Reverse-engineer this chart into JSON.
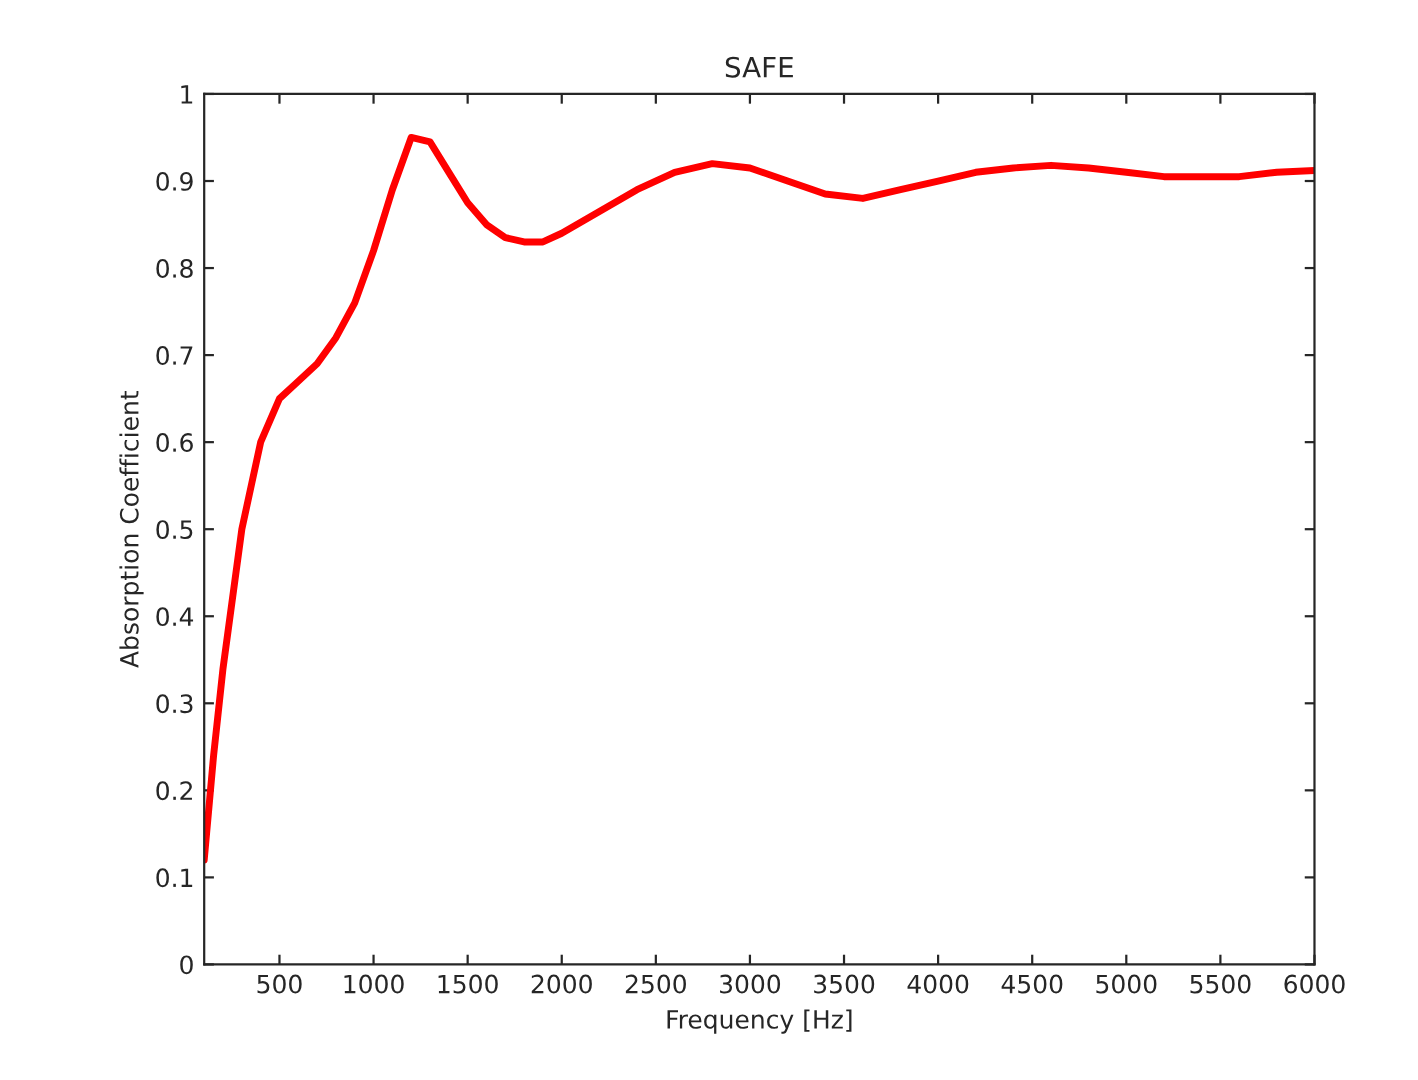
{
  "chart_data": {
    "type": "line",
    "title": "SAFE",
    "xlabel": "Frequency [Hz]",
    "ylabel": "Absorption Coefficient",
    "x": [
      100,
      150,
      200,
      300,
      400,
      500,
      600,
      700,
      800,
      900,
      1000,
      1100,
      1200,
      1300,
      1400,
      1500,
      1600,
      1700,
      1800,
      1900,
      2000,
      2200,
      2400,
      2600,
      2800,
      3000,
      3200,
      3400,
      3600,
      3800,
      4000,
      4200,
      4400,
      4600,
      4800,
      5000,
      5200,
      5400,
      5600,
      5800,
      6000
    ],
    "series": [
      {
        "color": "#ff0000",
        "values": [
          0.12,
          0.24,
          0.34,
          0.5,
          0.6,
          0.65,
          0.67,
          0.69,
          0.72,
          0.76,
          0.82,
          0.89,
          0.95,
          0.945,
          0.91,
          0.875,
          0.85,
          0.835,
          0.83,
          0.83,
          0.84,
          0.865,
          0.89,
          0.91,
          0.92,
          0.915,
          0.9,
          0.885,
          0.88,
          0.89,
          0.9,
          0.91,
          0.915,
          0.918,
          0.915,
          0.91,
          0.905,
          0.905,
          0.905,
          0.91,
          0.912
        ]
      }
    ],
    "xlim": [
      100,
      6000
    ],
    "ylim": [
      0,
      1
    ],
    "xticks": [
      500,
      1000,
      1500,
      2000,
      2500,
      3000,
      3500,
      4000,
      4500,
      5000,
      5500,
      6000
    ],
    "yticks": [
      0,
      0.1,
      0.2,
      0.3,
      0.4,
      0.5,
      0.6,
      0.7,
      0.8,
      0.9,
      1
    ],
    "grid": false,
    "legend": false,
    "marker": "none",
    "line_style": "solid"
  }
}
